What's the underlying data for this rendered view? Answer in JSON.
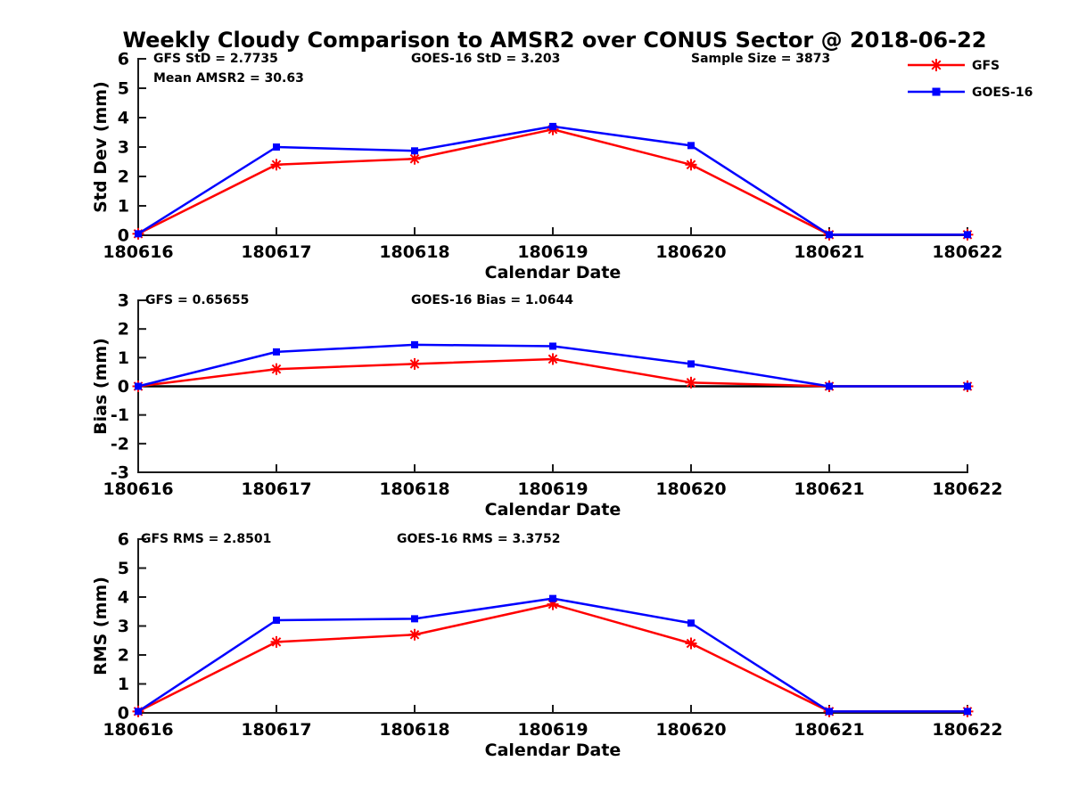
{
  "title": "Weekly Cloudy Comparison to AMSR2 over CONUS Sector @ 2018-06-22",
  "colors": {
    "gfs": "#ff0000",
    "goes16": "#0000ff",
    "axis": "#1a1a1a",
    "zero_line": "#000000",
    "background": "#ffffff"
  },
  "legend": {
    "position": "top-right",
    "items": [
      {
        "label": "GFS",
        "color": "#ff0000",
        "marker": "asterisk"
      },
      {
        "label": "GOES-16",
        "color": "#0000ff",
        "marker": "square"
      }
    ]
  },
  "chart_data": [
    {
      "type": "line",
      "name": "std-dev",
      "xlabel": "Calendar Date",
      "ylabel": "Std Dev (mm)",
      "categories": [
        "180616",
        "180617",
        "180618",
        "180619",
        "180620",
        "180621",
        "180622"
      ],
      "ylim": [
        0,
        6
      ],
      "yticks": [
        0,
        1,
        2,
        3,
        4,
        5,
        6
      ],
      "grid": false,
      "zero_line": false,
      "legend_position": "top-right-outside",
      "series": [
        {
          "name": "GFS",
          "color": "#ff0000",
          "marker": "asterisk",
          "values": [
            0.05,
            2.4,
            2.6,
            3.6,
            2.4,
            0.02,
            0.02
          ]
        },
        {
          "name": "GOES-16",
          "color": "#0000ff",
          "marker": "square",
          "values": [
            0.05,
            3.0,
            2.87,
            3.7,
            3.05,
            0.02,
            0.02
          ]
        }
      ],
      "annotations": [
        {
          "text": "GFS StD = 2.7735",
          "x_offset": 17,
          "line": 0
        },
        {
          "text": "Mean AMSR2 = 30.63",
          "x_offset": 17,
          "line": 1
        },
        {
          "text": "GOES-16 StD = 3.203",
          "x_offset": 306,
          "line": 0
        },
        {
          "text": "Sample Size = 3873",
          "x_offset": 620,
          "line": 0
        }
      ]
    },
    {
      "type": "line",
      "name": "bias",
      "xlabel": "Calendar Date",
      "ylabel": "Bias (mm)",
      "categories": [
        "180616",
        "180617",
        "180618",
        "180619",
        "180620",
        "180621",
        "180622"
      ],
      "ylim": [
        -3,
        3
      ],
      "yticks": [
        -3,
        -2,
        -1,
        0,
        1,
        2,
        3
      ],
      "grid": false,
      "zero_line": true,
      "series": [
        {
          "name": "GFS",
          "color": "#ff0000",
          "marker": "asterisk",
          "values": [
            0.0,
            0.6,
            0.78,
            0.95,
            0.13,
            0.0,
            0.0
          ]
        },
        {
          "name": "GOES-16",
          "color": "#0000ff",
          "marker": "square",
          "values": [
            0.0,
            1.2,
            1.45,
            1.4,
            0.78,
            0.0,
            0.0
          ]
        }
      ],
      "annotations": [
        {
          "text": "GFS = 0.65655",
          "x_offset": 8,
          "line": 0
        },
        {
          "text": "GOES-16 Bias  = 1.0644",
          "x_offset": 306,
          "line": 0
        }
      ]
    },
    {
      "type": "line",
      "name": "rms",
      "xlabel": "Calendar Date",
      "ylabel": "RMS (mm)",
      "categories": [
        "180616",
        "180617",
        "180618",
        "180619",
        "180620",
        "180621",
        "180622"
      ],
      "ylim": [
        0,
        6
      ],
      "yticks": [
        0,
        1,
        2,
        3,
        4,
        5,
        6
      ],
      "grid": false,
      "zero_line": false,
      "series": [
        {
          "name": "GFS",
          "color": "#ff0000",
          "marker": "asterisk",
          "values": [
            0.05,
            2.45,
            2.7,
            3.75,
            2.4,
            0.05,
            0.05
          ]
        },
        {
          "name": "GOES-16",
          "color": "#0000ff",
          "marker": "square",
          "values": [
            0.05,
            3.2,
            3.25,
            3.95,
            3.1,
            0.05,
            0.05
          ]
        }
      ],
      "annotations": [
        {
          "text": "GFS RMS = 2.8501",
          "x_offset": 3,
          "line": 0
        },
        {
          "text": "GOES-16 RMS = 3.3752",
          "x_offset": 290,
          "line": 0
        }
      ]
    }
  ]
}
